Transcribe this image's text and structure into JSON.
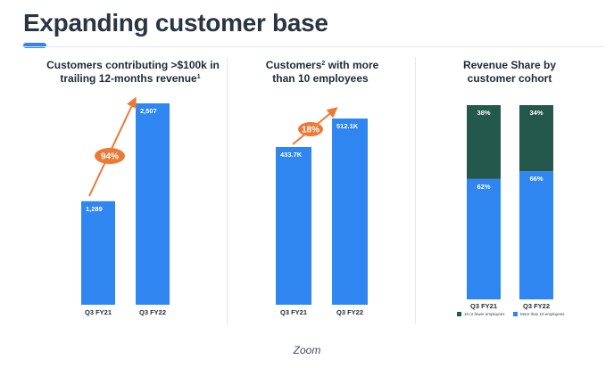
{
  "slide": {
    "title": "Expanding customer base",
    "footer": "Zoom"
  },
  "colors": {
    "blue": "#2f86f0",
    "dark_green": "#24584a",
    "orange": "#ec7a35"
  },
  "chart_data": [
    {
      "type": "bar",
      "title_lines": [
        "Customers contributing >$100k in",
        "trailing 12-months revenue"
      ],
      "title_superscript": "1",
      "categories": [
        "Q3 FY21",
        "Q3 FY22"
      ],
      "values": [
        1289,
        2507
      ],
      "value_labels": [
        "1,289",
        "2,507"
      ],
      "growth_label": "94%",
      "ylim": [
        0,
        2507
      ]
    },
    {
      "type": "bar",
      "title_lines": [
        "Customers",
        " with more",
        "than 10 employees"
      ],
      "title_superscript": "2",
      "categories": [
        "Q3 FY21",
        "Q3 FY22"
      ],
      "values": [
        433.7,
        512.1
      ],
      "value_labels": [
        "433.7K",
        "512.1K"
      ],
      "growth_label": "18%",
      "ylim": [
        0,
        512.1
      ]
    },
    {
      "type": "bar",
      "stacked": true,
      "title_lines": [
        "Revenue Share by",
        "customer cohort"
      ],
      "categories": [
        "Q3 FY21",
        "Q3 FY22"
      ],
      "series": [
        {
          "name": "More than 10 employees",
          "values": [
            62,
            66
          ],
          "labels": [
            "62%",
            "66%"
          ],
          "color": "#2f86f0"
        },
        {
          "name": "10 or fewer employees",
          "values": [
            38,
            34
          ],
          "labels": [
            "38%",
            "34%"
          ],
          "color": "#24584a"
        }
      ],
      "ylim": [
        0,
        100
      ],
      "legend": "bottom"
    }
  ]
}
